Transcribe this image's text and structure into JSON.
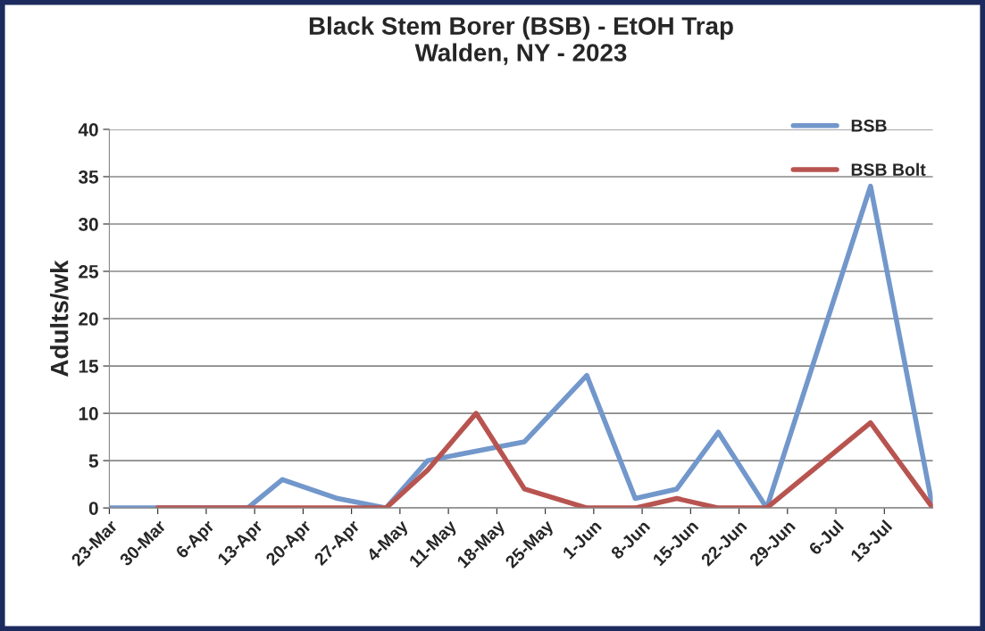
{
  "chart_data": {
    "type": "line",
    "title": "Black Stem Borer (BSB) - EtOH Trap\nWalden, NY - 2023",
    "ylabel": "Adults/wk",
    "series": [
      {
        "name": "BSB",
        "color": "#7297cb",
        "x": [
          "2023-03-23",
          "2023-03-30",
          "2023-04-06",
          "2023-04-12",
          "2023-04-17",
          "2023-04-25",
          "2023-05-02",
          "2023-05-08",
          "2023-05-15",
          "2023-05-22",
          "2023-05-31",
          "2023-06-07",
          "2023-06-13",
          "2023-06-19",
          "2023-06-26",
          "2023-07-11",
          "2023-07-20"
        ],
        "values": [
          0,
          0,
          0,
          0,
          3,
          1,
          0,
          5,
          6,
          7,
          14,
          1,
          2,
          8,
          0,
          34,
          0
        ]
      },
      {
        "name": "BSB Bolt",
        "color": "#b85450",
        "x": [
          "2023-03-30",
          "2023-04-06",
          "2023-04-12",
          "2023-04-17",
          "2023-04-25",
          "2023-05-02",
          "2023-05-08",
          "2023-05-15",
          "2023-05-22",
          "2023-05-31",
          "2023-06-07",
          "2023-06-13",
          "2023-06-19",
          "2023-06-26",
          "2023-07-11",
          "2023-07-20"
        ],
        "values": [
          0,
          0,
          0,
          0,
          0,
          0,
          4,
          10,
          2,
          0,
          0,
          1,
          0,
          0,
          9,
          0
        ]
      }
    ],
    "xlim": [
      "2023-03-23",
      "2023-07-20"
    ],
    "xticks": [
      {
        "value": "2023-03-23",
        "label": "23-Mar"
      },
      {
        "value": "2023-03-30",
        "label": "30-Mar"
      },
      {
        "value": "2023-04-06",
        "label": "6-Apr"
      },
      {
        "value": "2023-04-13",
        "label": "13-Apr"
      },
      {
        "value": "2023-04-20",
        "label": "20-Apr"
      },
      {
        "value": "2023-04-27",
        "label": "27-Apr"
      },
      {
        "value": "2023-05-04",
        "label": "4-May"
      },
      {
        "value": "2023-05-11",
        "label": "11-May"
      },
      {
        "value": "2023-05-18",
        "label": "18-May"
      },
      {
        "value": "2023-05-25",
        "label": "25-May"
      },
      {
        "value": "2023-06-01",
        "label": "1-Jun"
      },
      {
        "value": "2023-06-08",
        "label": "8-Jun"
      },
      {
        "value": "2023-06-15",
        "label": "15-Jun"
      },
      {
        "value": "2023-06-22",
        "label": "22-Jun"
      },
      {
        "value": "2023-06-29",
        "label": "29-Jun"
      },
      {
        "value": "2023-07-06",
        "label": "6-Jul"
      },
      {
        "value": "2023-07-13",
        "label": "13-Jul"
      }
    ],
    "ylim": [
      0,
      40
    ],
    "yticks": [
      0,
      5,
      10,
      15,
      20,
      25,
      30,
      35,
      40
    ],
    "grid": "y",
    "legend": "top right",
    "marker": "none",
    "line_style": "solid"
  }
}
